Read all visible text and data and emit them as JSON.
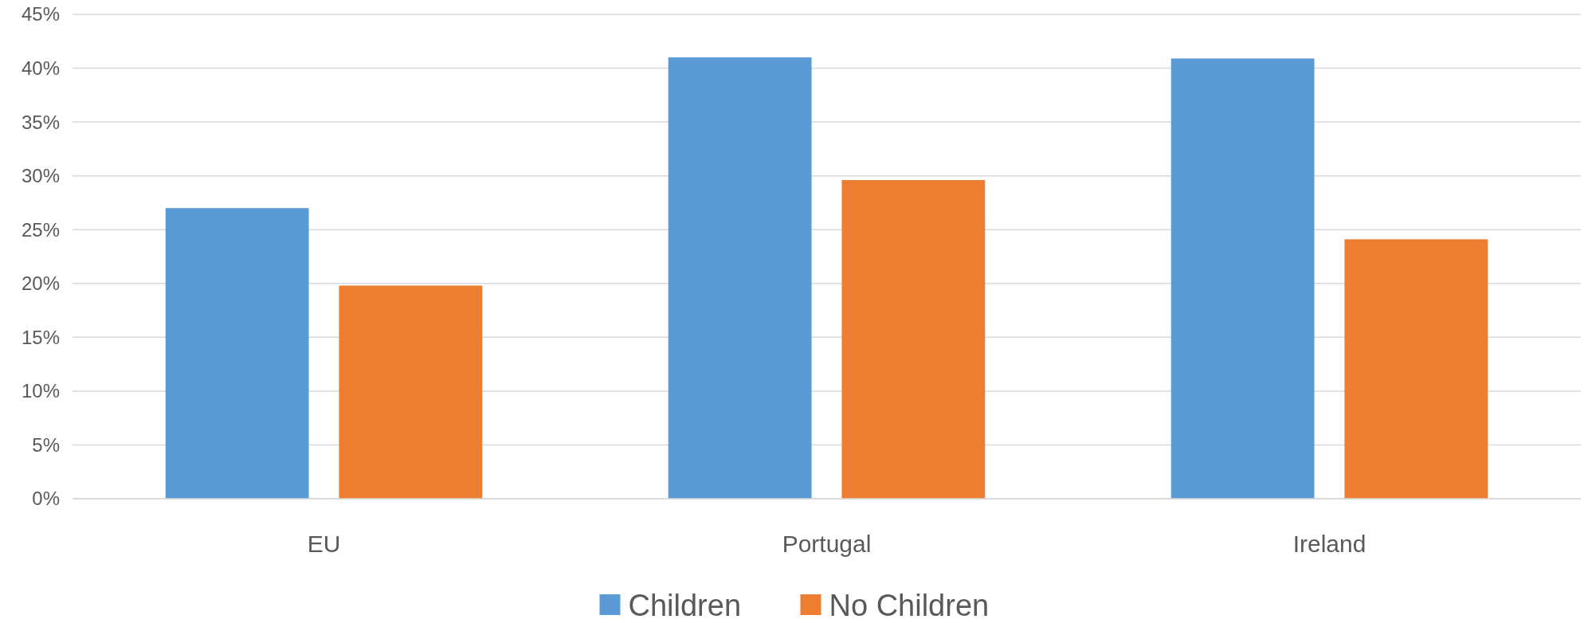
{
  "chart_data": {
    "type": "bar",
    "categories": [
      "EU",
      "Portugal",
      "Ireland"
    ],
    "series": [
      {
        "name": "Children",
        "color": "#5b9bd5",
        "values": [
          27.0,
          41.0,
          40.9
        ]
      },
      {
        "name": "No Children",
        "color": "#ed7d31",
        "values": [
          19.8,
          29.6,
          24.1
        ]
      }
    ],
    "ylim": [
      0,
      45
    ],
    "yticks": [
      {
        "value": 0,
        "label": "0%"
      },
      {
        "value": 5,
        "label": "5%"
      },
      {
        "value": 10,
        "label": "10%"
      },
      {
        "value": 15,
        "label": "15%"
      },
      {
        "value": 20,
        "label": "20%"
      },
      {
        "value": 25,
        "label": "25%"
      },
      {
        "value": 30,
        "label": "30%"
      },
      {
        "value": 35,
        "label": "35%"
      },
      {
        "value": 40,
        "label": "40%"
      },
      {
        "value": 45,
        "label": "45%"
      }
    ],
    "grid": "y",
    "legend": "bottom"
  }
}
